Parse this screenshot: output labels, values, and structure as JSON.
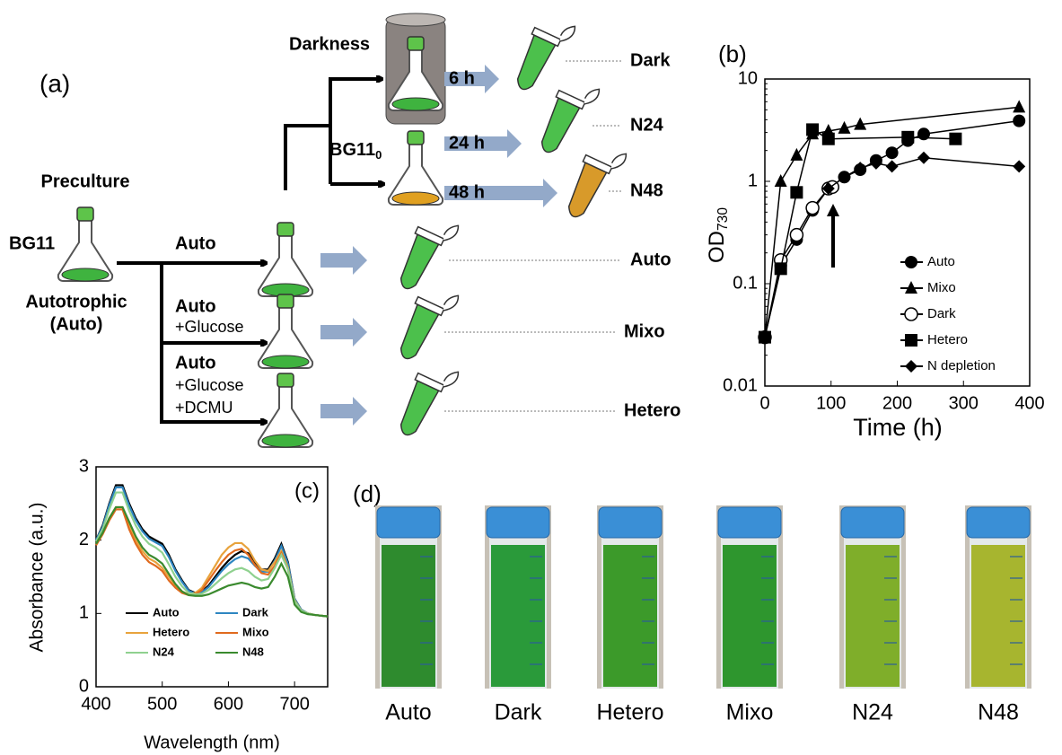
{
  "panel_a": {
    "label": "(a)",
    "preculture": "Preculture",
    "medium": "BG11",
    "autotrophic": [
      "Autotrophic",
      "(Auto)"
    ],
    "conditions": [
      {
        "lines": [
          "Auto"
        ]
      },
      {
        "lines": [
          "Auto",
          "+Glucose"
        ]
      },
      {
        "lines": [
          "Auto",
          "+Glucose",
          "+DCMU"
        ]
      }
    ],
    "darkness": "Darkness",
    "bg11_0": {
      "text": "BG11",
      "subscript": "0"
    },
    "times": [
      "6 h",
      "24 h",
      "48 h"
    ],
    "samples": [
      "Dark",
      "N24",
      "N48",
      "Auto",
      "Mixo",
      "Hetero"
    ]
  },
  "chart_data": [
    {
      "type": "line",
      "label": "(b)",
      "x_label": "Time (h)",
      "y_label": {
        "text": "OD",
        "subscript": "730"
      },
      "y_scale": "log",
      "xlim": [
        0,
        400
      ],
      "xticks": [
        0,
        100,
        200,
        300,
        400
      ],
      "ylim": [
        0.01,
        10
      ],
      "yticks": [
        0.01,
        0.1,
        1,
        10
      ],
      "legend": "lower right",
      "series": [
        {
          "name": "Auto",
          "marker": "filled-circle",
          "color": "#000000",
          "x": [
            0,
            24,
            48,
            72,
            96,
            120,
            144,
            168,
            192,
            216,
            240,
            384
          ],
          "values": [
            0.03,
            0.15,
            0.27,
            0.52,
            0.85,
            1.1,
            1.3,
            1.6,
            1.9,
            2.5,
            2.9,
            3.9
          ]
        },
        {
          "name": "Mixo",
          "marker": "triangle",
          "color": "#000000",
          "x": [
            0,
            24,
            48,
            72,
            96,
            120,
            144,
            384
          ],
          "values": [
            0.03,
            1.0,
            1.8,
            2.9,
            3.1,
            3.3,
            3.6,
            5.3
          ]
        },
        {
          "name": "Dark",
          "marker": "open-circle",
          "color": "#000000",
          "x": [
            0,
            24,
            48,
            72,
            96,
            102
          ],
          "values": [
            0.03,
            0.17,
            0.3,
            0.55,
            0.85,
            0.88
          ]
        },
        {
          "name": "Hetero",
          "marker": "square",
          "color": "#000000",
          "x": [
            0,
            24,
            48,
            72,
            96,
            216,
            288
          ],
          "values": [
            0.03,
            0.14,
            0.78,
            3.2,
            2.6,
            2.7,
            2.6
          ]
        },
        {
          "name": "N depletion",
          "marker": "diamond",
          "color": "#000000",
          "x": [
            96,
            120,
            144,
            168,
            192,
            240,
            384
          ],
          "values": [
            0.85,
            1.1,
            1.35,
            1.5,
            1.4,
            1.7,
            1.4
          ]
        }
      ]
    },
    {
      "type": "line",
      "label": "(c)",
      "x_label": "Wavelength (nm)",
      "y_label": "Absorbance (a.u.)",
      "xlim": [
        400,
        750
      ],
      "xticks": [
        400,
        500,
        600,
        700
      ],
      "ylim": [
        0,
        3
      ],
      "yticks": [
        0,
        1,
        2,
        3
      ],
      "legend": "lower left",
      "x": [
        400,
        410,
        420,
        430,
        440,
        450,
        460,
        470,
        480,
        490,
        500,
        510,
        520,
        530,
        540,
        550,
        560,
        570,
        580,
        590,
        600,
        610,
        620,
        630,
        640,
        650,
        660,
        670,
        680,
        690,
        700,
        710,
        720,
        730,
        740,
        750
      ],
      "series": [
        {
          "name": "Auto",
          "color": "#000000",
          "values": [
            2.0,
            2.2,
            2.5,
            2.75,
            2.75,
            2.5,
            2.3,
            2.15,
            2.05,
            2.0,
            1.95,
            1.8,
            1.6,
            1.45,
            1.32,
            1.28,
            1.3,
            1.38,
            1.5,
            1.62,
            1.72,
            1.8,
            1.85,
            1.82,
            1.7,
            1.6,
            1.6,
            1.75,
            1.95,
            1.7,
            1.2,
            1.05,
            1.0,
            0.98,
            0.97,
            0.96
          ]
        },
        {
          "name": "Dark",
          "color": "#2e86c1",
          "values": [
            2.0,
            2.18,
            2.48,
            2.72,
            2.72,
            2.47,
            2.27,
            2.12,
            2.02,
            1.97,
            1.92,
            1.77,
            1.58,
            1.43,
            1.31,
            1.27,
            1.29,
            1.36,
            1.47,
            1.58,
            1.67,
            1.74,
            1.78,
            1.75,
            1.65,
            1.57,
            1.57,
            1.72,
            1.92,
            1.68,
            1.2,
            1.05,
            1.0,
            0.98,
            0.97,
            0.96
          ]
        },
        {
          "name": "Hetero",
          "color": "#e8a33d",
          "values": [
            1.95,
            2.1,
            2.3,
            2.45,
            2.45,
            2.2,
            2.0,
            1.85,
            1.75,
            1.7,
            1.62,
            1.5,
            1.38,
            1.3,
            1.26,
            1.28,
            1.35,
            1.5,
            1.65,
            1.8,
            1.9,
            1.96,
            1.96,
            1.88,
            1.72,
            1.6,
            1.58,
            1.7,
            1.85,
            1.62,
            1.18,
            1.04,
            1.0,
            0.98,
            0.97,
            0.96
          ]
        },
        {
          "name": "Mixo",
          "color": "#e06a1e",
          "values": [
            1.93,
            2.08,
            2.27,
            2.42,
            2.42,
            2.15,
            1.95,
            1.8,
            1.7,
            1.65,
            1.58,
            1.45,
            1.35,
            1.28,
            1.25,
            1.26,
            1.32,
            1.45,
            1.58,
            1.7,
            1.8,
            1.86,
            1.88,
            1.8,
            1.66,
            1.55,
            1.53,
            1.65,
            1.82,
            1.6,
            1.17,
            1.04,
            1.0,
            0.98,
            0.97,
            0.96
          ]
        },
        {
          "name": "N24",
          "color": "#8fd18f",
          "values": [
            1.98,
            2.15,
            2.42,
            2.65,
            2.65,
            2.4,
            2.2,
            2.05,
            1.95,
            1.9,
            1.83,
            1.67,
            1.5,
            1.37,
            1.28,
            1.26,
            1.27,
            1.32,
            1.4,
            1.48,
            1.55,
            1.6,
            1.62,
            1.58,
            1.5,
            1.45,
            1.47,
            1.62,
            1.8,
            1.6,
            1.17,
            1.04,
            1.0,
            0.98,
            0.97,
            0.96
          ]
        },
        {
          "name": "N48",
          "color": "#3a8a2e",
          "values": [
            1.95,
            2.1,
            2.3,
            2.45,
            2.45,
            2.25,
            2.05,
            1.9,
            1.8,
            1.75,
            1.68,
            1.54,
            1.4,
            1.3,
            1.25,
            1.24,
            1.24,
            1.26,
            1.3,
            1.34,
            1.38,
            1.4,
            1.42,
            1.4,
            1.36,
            1.34,
            1.36,
            1.5,
            1.68,
            1.5,
            1.12,
            1.02,
            0.99,
            0.98,
            0.97,
            0.96
          ]
        }
      ]
    }
  ],
  "panel_d": {
    "label": "(d)",
    "photos": [
      {
        "caption": "Auto",
        "color": "#2e8b2e"
      },
      {
        "caption": "Dark",
        "color": "#2a9a3a"
      },
      {
        "caption": "Hetero",
        "color": "#3c9a2a"
      },
      {
        "caption": "Mixo",
        "color": "#2e962e"
      },
      {
        "caption": "N24",
        "color": "#7fae2a"
      },
      {
        "caption": "N48",
        "color": "#a7b52f"
      }
    ]
  }
}
